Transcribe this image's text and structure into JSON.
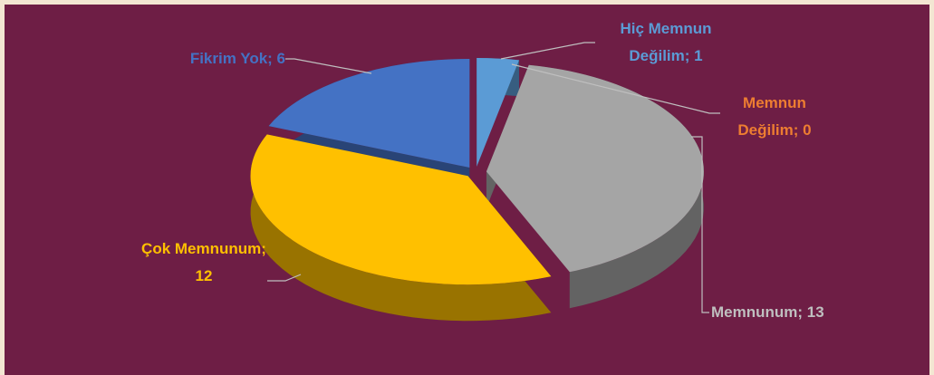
{
  "chart_data": {
    "type": "pie3d",
    "values": [
      1,
      0,
      13,
      12,
      6
    ],
    "value_labels": [
      "Hiç Memnun Değilim; 1",
      "Memnun Değilim; 0",
      "Memnunum; 13",
      "Çok Memnunum; 12",
      "Fikrim Yok; 6"
    ],
    "colors": [
      "#5b9bd5",
      "#ed7d31",
      "#a5a5a5",
      "#ffc000",
      "#4472c4"
    ]
  }
}
